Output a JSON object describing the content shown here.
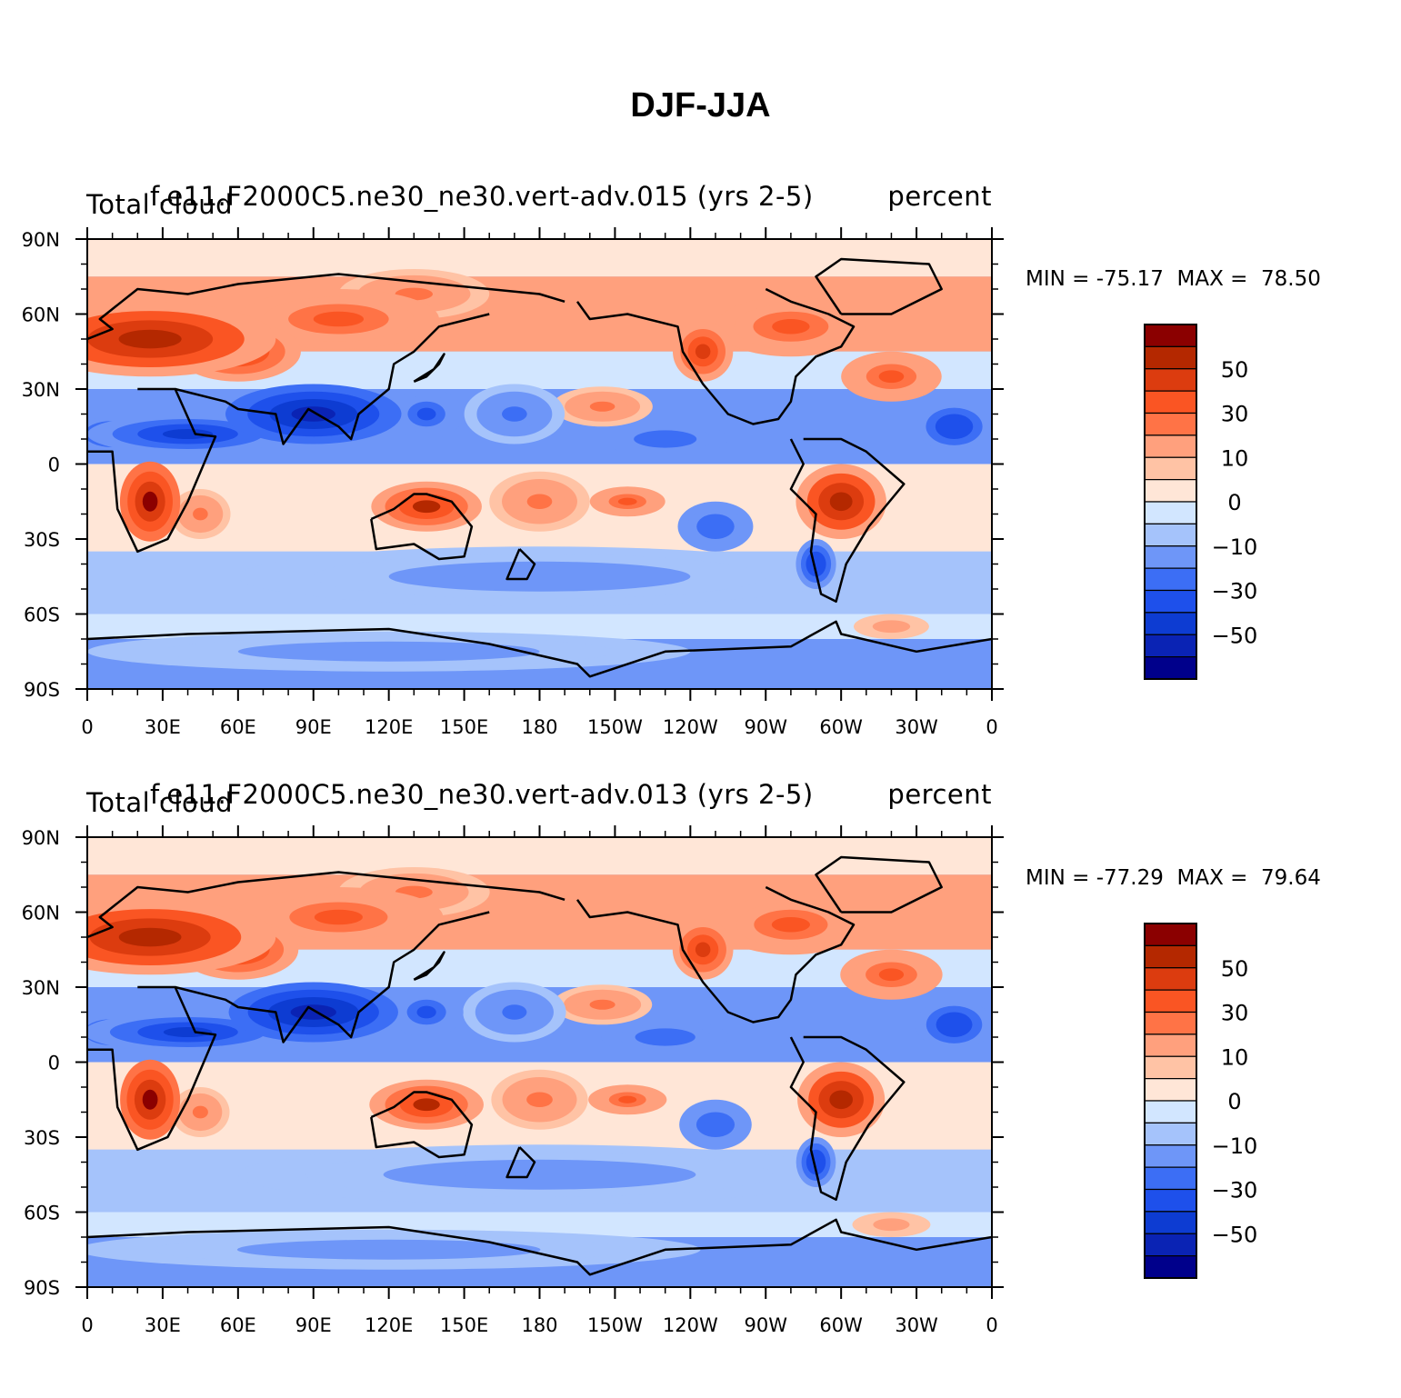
{
  "title": "DJF-JJA",
  "panels": [
    {
      "variable": "Total cloud",
      "case": "f.e11.F2000C5.ne30_ne30.vert-adv.015 (yrs 2-5)",
      "units": "percent",
      "min_label": "MIN = -75.17",
      "max_label": "MAX =  78.50"
    },
    {
      "variable": "Total cloud",
      "case": "f.e11.F2000C5.ne30_ne30.vert-adv.013 (yrs 2-5)",
      "units": "percent",
      "min_label": "MIN = -77.29",
      "max_label": "MAX =  79.64"
    }
  ],
  "chart_data": {
    "type": "heatmap",
    "x_ticks": [
      "0",
      "30E",
      "60E",
      "90E",
      "120E",
      "150E",
      "180",
      "150W",
      "120W",
      "90W",
      "60W",
      "30W",
      "0"
    ],
    "y_ticks": [
      "90N",
      "60N",
      "30N",
      "0",
      "30S",
      "60S",
      "90S"
    ],
    "xlim": [
      0,
      360
    ],
    "ylim": [
      -90,
      90
    ],
    "colorbar": {
      "levels": [
        -70,
        -60,
        -50,
        -40,
        -30,
        -20,
        -10,
        -5,
        0,
        5,
        10,
        20,
        30,
        40,
        50,
        60,
        70
      ],
      "labels": [
        "-50",
        "-30",
        "-10",
        "0",
        "10",
        "30",
        "50"
      ],
      "colors": [
        "#00008b",
        "#0a23b4",
        "#0d3cd2",
        "#1e50eb",
        "#3c6ef5",
        "#6e96f8",
        "#a5c3fb",
        "#d2e6ff",
        "#ffe6d7",
        "#ffc3a5",
        "#ffa07d",
        "#ff7346",
        "#fa5523",
        "#dc3c0f",
        "#b42800",
        "#8b0000"
      ]
    },
    "features": [
      {
        "lon": 25,
        "lat": 50,
        "value": 55,
        "rx": 50,
        "ry": 15
      },
      {
        "lon": 60,
        "lat": 45,
        "value": 45,
        "rx": 25,
        "ry": 12
      },
      {
        "lon": 100,
        "lat": 58,
        "value": 30,
        "rx": 40,
        "ry": 12
      },
      {
        "lon": 130,
        "lat": 68,
        "value": 20,
        "rx": 30,
        "ry": 10
      },
      {
        "lon": 90,
        "lat": 20,
        "value": -60,
        "rx": 35,
        "ry": 12
      },
      {
        "lon": 40,
        "lat": 12,
        "value": -50,
        "rx": 40,
        "ry": 8
      },
      {
        "lon": 10,
        "lat": 12,
        "value": -45,
        "rx": 15,
        "ry": 7
      },
      {
        "lon": 135,
        "lat": 20,
        "value": -35,
        "rx": 15,
        "ry": 10
      },
      {
        "lon": 205,
        "lat": 23,
        "value": 25,
        "rx": 20,
        "ry": 8
      },
      {
        "lon": 170,
        "lat": 20,
        "value": -25,
        "rx": 20,
        "ry": 12
      },
      {
        "lon": 230,
        "lat": 10,
        "value": -30,
        "rx": 25,
        "ry": 7
      },
      {
        "lon": 245,
        "lat": 45,
        "value": 45,
        "rx": 12,
        "ry": 12
      },
      {
        "lon": 280,
        "lat": 55,
        "value": 30,
        "rx": 30,
        "ry": 12
      },
      {
        "lon": 320,
        "lat": 35,
        "value": 35,
        "rx": 20,
        "ry": 10
      },
      {
        "lon": 345,
        "lat": 15,
        "value": -40,
        "rx": 15,
        "ry": 10
      },
      {
        "lon": 25,
        "lat": -15,
        "value": 60,
        "rx": 12,
        "ry": 16
      },
      {
        "lon": 45,
        "lat": -20,
        "value": 20,
        "rx": 12,
        "ry": 10
      },
      {
        "lon": 135,
        "lat": -17,
        "value": 50,
        "rx": 22,
        "ry": 10
      },
      {
        "lon": 180,
        "lat": -15,
        "value": 20,
        "rx": 20,
        "ry": 12
      },
      {
        "lon": 215,
        "lat": -15,
        "value": 35,
        "rx": 15,
        "ry": 6
      },
      {
        "lon": 300,
        "lat": -15,
        "value": 55,
        "rx": 18,
        "ry": 15
      },
      {
        "lon": 250,
        "lat": -25,
        "value": -30,
        "rx": 15,
        "ry": 10
      },
      {
        "lon": 290,
        "lat": -40,
        "value": -40,
        "rx": 8,
        "ry": 10
      },
      {
        "lon": 180,
        "lat": -45,
        "value": -15,
        "rx": 120,
        "ry": 12
      },
      {
        "lon": 120,
        "lat": -75,
        "value": -15,
        "rx": 120,
        "ry": 8
      },
      {
        "lon": 320,
        "lat": -65,
        "value": 15,
        "rx": 15,
        "ry": 5
      }
    ]
  }
}
